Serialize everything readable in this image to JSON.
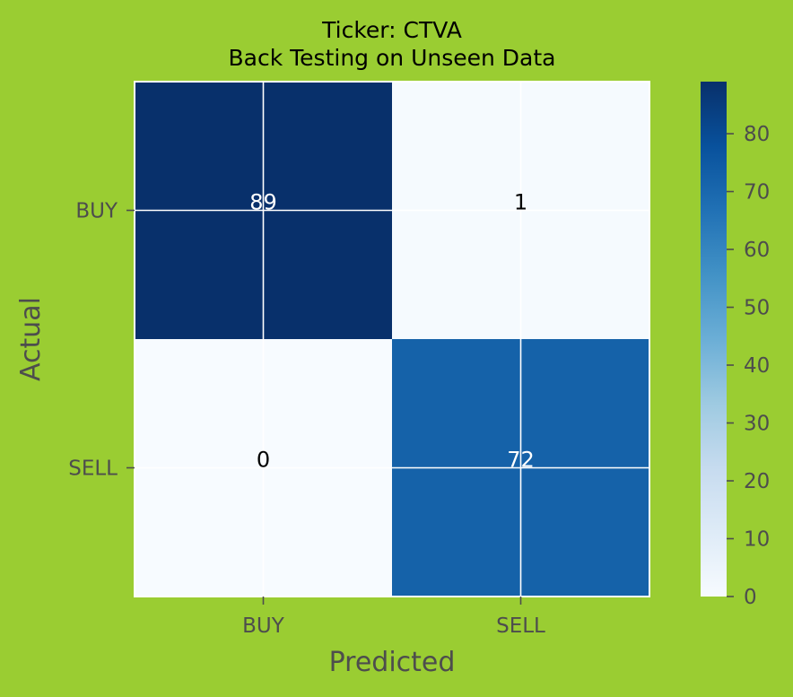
{
  "chart_data": {
    "type": "heatmap",
    "title": "Ticker: CTVA",
    "subtitle": "Back Testing on Unseen Data",
    "xlabel": "Predicted",
    "ylabel": "Actual",
    "x_categories": [
      "BUY",
      "SELL"
    ],
    "y_categories": [
      "BUY",
      "SELL"
    ],
    "values": [
      [
        89,
        1
      ],
      [
        0,
        72
      ]
    ],
    "colormap": "Blues",
    "colorbar": {
      "range": [
        0,
        89
      ],
      "ticks": [
        "0",
        "10",
        "20",
        "30",
        "40",
        "50",
        "60",
        "70",
        "80"
      ]
    },
    "grid": true
  },
  "colors": {
    "background": "#9acd32",
    "cmap_low": "#f7fbff",
    "cmap_mid": "#6aaed6",
    "cmap_high": "#08306b",
    "grid_line": "#ffffff",
    "tick_text": "#4d4d4d"
  }
}
